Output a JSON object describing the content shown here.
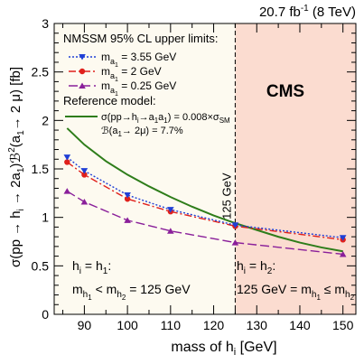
{
  "chart_data": {
    "type": "line",
    "lumi_label": "20.7 fb⁻¹ (8 TeV)",
    "experiment_label": "CMS",
    "xlabel": "mass of hᵢ [GeV]",
    "ylabel": "σ(pp → hᵢ → 2a₁)ℬ²(a₁→ 2 μ) [fb]",
    "xlim": [
      83,
      153
    ],
    "ylim": [
      0,
      3
    ],
    "x_ticks": [
      90,
      100,
      110,
      120,
      130,
      140,
      150
    ],
    "y_ticks": [
      0,
      0.5,
      1,
      1.5,
      2,
      2.5,
      3
    ],
    "legend": {
      "title": "NMSSM 95% CL upper limits:",
      "ref_title": "Reference model:",
      "ref_line1": "σ(pp→hᵢ→a₁a₁) = 0.008×σSM",
      "ref_line2": "ℬ(a₁→ 2μ) = 7.7%",
      "placement": "top-left"
    },
    "regions": [
      {
        "name": "h1-region",
        "from": 83,
        "to": 125,
        "color": "#fdfaf0",
        "label_line1": "hᵢ = h₁:",
        "label_line2": "m h₁ < m h₂ = 125 GeV"
      },
      {
        "name": "h2-region",
        "from": 125,
        "to": 153,
        "color": "#fbdcd0",
        "label_line1": "hᵢ = h₂:",
        "label_line2": "125 GeV = m h₁ ≤ m h₂"
      }
    ],
    "vline": {
      "x": 125,
      "label": "125 GeV"
    },
    "series": [
      {
        "name": "m a₁ = 3.55 GeV",
        "color": "#1f3fd6",
        "dash": "2,2",
        "marker": "triangle-down",
        "x": [
          86,
          90,
          100,
          110,
          125,
          150
        ],
        "y": [
          1.62,
          1.48,
          1.23,
          1.08,
          0.92,
          0.79
        ]
      },
      {
        "name": "m a₁ = 2 GeV",
        "color": "#e0201b",
        "dash": "8,3,2,3",
        "marker": "circle",
        "x": [
          86,
          90,
          100,
          110,
          125,
          150
        ],
        "y": [
          1.57,
          1.44,
          1.19,
          1.06,
          0.91,
          0.77
        ]
      },
      {
        "name": "m a₁ = 0.25 GeV",
        "color": "#8a1f9a",
        "dash": "10,4",
        "marker": "triangle-up",
        "x": [
          86,
          90,
          100,
          110,
          125,
          150
        ],
        "y": [
          1.27,
          1.16,
          0.97,
          0.86,
          0.74,
          0.62
        ]
      },
      {
        "name": "reference-model",
        "color": "#2e7d1a",
        "dash": "",
        "marker": "none",
        "x": [
          86,
          90,
          95,
          100,
          105,
          110,
          115,
          120,
          125,
          130,
          135,
          140,
          145,
          150
        ],
        "y": [
          1.92,
          1.75,
          1.58,
          1.44,
          1.32,
          1.21,
          1.11,
          1.02,
          0.94,
          0.87,
          0.8,
          0.74,
          0.69,
          0.65
        ]
      }
    ]
  }
}
